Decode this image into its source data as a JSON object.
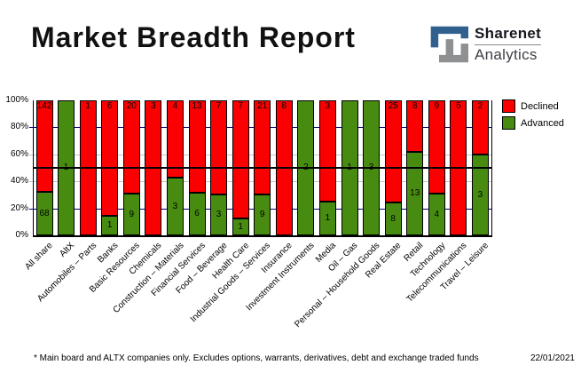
{
  "header": {
    "title": "Market Breadth Report"
  },
  "logo": {
    "brand": "Sharenet",
    "sub": "Analytics",
    "mark_blue": "#31608f",
    "mark_gray": "#8e9092"
  },
  "chart_data": {
    "type": "bar",
    "subtype": "stacked-100-percent-column",
    "categories": [
      "All share",
      "AltX",
      "Automobiles – Parts",
      "Banks",
      "Basic Resources",
      "Chemicals",
      "Construction – Materials",
      "Financial Services",
      "Food – Beverage",
      "Health Care",
      "Industrial Goods – Services",
      "Insurance",
      "Investment Instruments",
      "Media",
      "Oil – Gas",
      "Personal – Household Goods",
      "Real Estate",
      "Retail",
      "Technology",
      "Telecommunications",
      "Travel – Leisure"
    ],
    "series": [
      {
        "name": "Declined",
        "color": "#fb0000",
        "values": [
          142,
          0,
          1,
          6,
          20,
          3,
          4,
          13,
          7,
          7,
          21,
          8,
          0,
          3,
          0,
          0,
          25,
          8,
          9,
          5,
          2
        ]
      },
      {
        "name": "Advanced",
        "color": "#478c10",
        "values": [
          68,
          1,
          0,
          1,
          9,
          0,
          3,
          6,
          3,
          1,
          9,
          0,
          2,
          1,
          1,
          3,
          8,
          13,
          4,
          0,
          3
        ]
      }
    ],
    "ylim": [
      0,
      100
    ],
    "y_tick_labels": [
      "100%",
      "80%",
      "60%",
      "40%",
      "20%",
      "0%"
    ],
    "gridlines": [
      {
        "pct": 80,
        "color": "#000080"
      },
      {
        "pct": 60,
        "color": "#c6c6c6"
      },
      {
        "pct": 40,
        "color": "#c6c6c6"
      },
      {
        "pct": 20,
        "color": "#000080"
      }
    ],
    "reference_line_pct": 50,
    "legend_position": "top-right",
    "grid": "on"
  },
  "footer": {
    "note": "* Main board and ALTX companies only. Excludes options, warrants, derivatives, debt and exchange traded funds",
    "date": "22/01/2021"
  }
}
